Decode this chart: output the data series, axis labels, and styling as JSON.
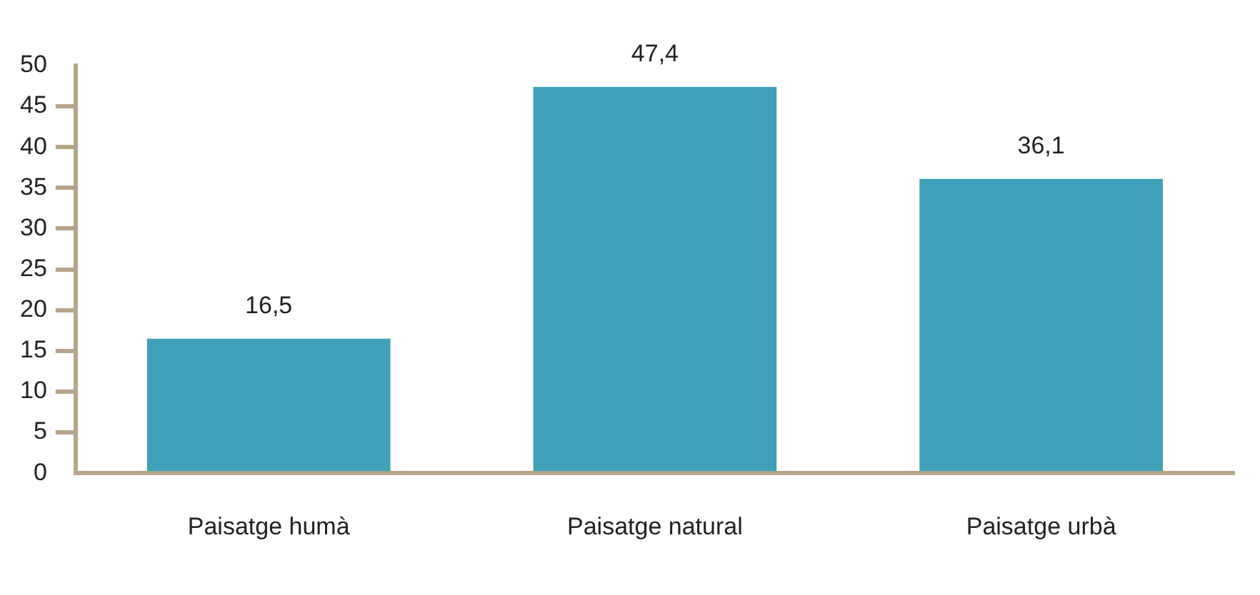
{
  "chart_data": {
    "type": "bar",
    "categories": [
      "Paisatge humà",
      "Paisatge natural",
      "Paisatge urbà"
    ],
    "values": [
      16.5,
      47.4,
      36.1
    ],
    "value_labels": [
      "16,5",
      "47,4",
      "36,1"
    ],
    "color": "#3fa0b8",
    "ylim": [
      0,
      50
    ],
    "yticks": [
      0,
      5,
      10,
      15,
      20,
      25,
      30,
      35,
      40,
      45,
      50
    ],
    "grid": false,
    "legend": false
  }
}
